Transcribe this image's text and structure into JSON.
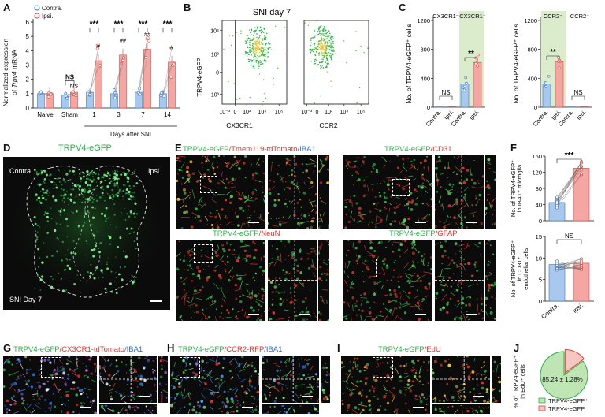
{
  "panels": {
    "A": {
      "label": "A",
      "ylabel_line1": "Normalized expression",
      "ylabel_line2_prefix": "of ",
      "ylabel_line2_gene": "Trpv4",
      "ylabel_line2_suffix": " mRNA",
      "xlabel": "Days after SNI",
      "legend": [
        "Contra.",
        "Ipsi."
      ],
      "yticks": [
        "0",
        "1",
        "2",
        "3",
        "4",
        "5",
        "6"
      ],
      "groups": [
        "Naive",
        "Sham",
        "1",
        "3",
        "7",
        "14"
      ],
      "sig_top": [
        "NS",
        "***",
        "***",
        "***",
        "***"
      ],
      "sig_ipsi": [
        "NS",
        "#",
        "##",
        "##",
        "#"
      ]
    },
    "B": {
      "label": "B",
      "title": "SNI day 7",
      "ylabel": "TRPV4-eGFP",
      "xlabel_left": "CX3CR1",
      "xlabel_right": "CCR2",
      "yticks": [
        "10⁴",
        "10³",
        "0",
        "−10³"
      ],
      "xticks": [
        "10⁻³",
        "0",
        "10³",
        "10⁴",
        "10⁵"
      ]
    },
    "C": {
      "label": "C",
      "left_headers": [
        "CX3CR1⁻",
        "CX3CR1⁺"
      ],
      "right_headers": [
        "CCR2⁻",
        "CCR2⁺"
      ],
      "ylabel_left": "No. of TRPV4-eGFP⁺ cells",
      "ylabel_right": "No. of TRPV4-eGFP⁺ cells",
      "yticks": [
        "0",
        "400",
        "800",
        "1200"
      ],
      "xticks": [
        "Contra.",
        "Ipsi.",
        "Contra.",
        "Ipsi."
      ],
      "sig_left": [
        "NS",
        "**"
      ],
      "sig_right": [
        "**",
        "NS"
      ]
    },
    "D": {
      "label": "D",
      "title": "TRPV4-eGFP",
      "left": "Contra.",
      "right": "Ipsi.",
      "bottom": "SNI Day 7"
    },
    "E": {
      "label": "E",
      "t1": [
        "TRPV4-eGFP",
        "/Tmem119-tdTomato",
        "/IBA1"
      ],
      "t2": [
        "TRPV4-eGFP",
        "/CD31"
      ],
      "t3": [
        "TRPV4-eGFP",
        "/NeuN"
      ],
      "t4": [
        "TRPV4-eGFP",
        "/GFAP"
      ]
    },
    "F": {
      "label": "F",
      "ylabel_top": [
        "No. of TRPV4-eGFP⁺",
        "in IBA1⁺ microglia"
      ],
      "ylabel_bottom": [
        "No. of TRPV4-eGFP⁺",
        "in CD31⁺",
        "endothelial cells"
      ],
      "yticks_top": [
        "0",
        "40",
        "80",
        "120",
        "160"
      ],
      "yticks_bottom": [
        "0",
        "5",
        "10",
        "15"
      ],
      "sig_top": "***",
      "sig_bottom": "NS",
      "xticks": [
        "Contra.",
        "Ipsi."
      ]
    },
    "G": {
      "label": "G",
      "t": [
        "TRPV4-eGFP",
        "/CX3CR1-tdTomato",
        "/IBA1"
      ]
    },
    "H": {
      "label": "H",
      "t": [
        "TRPV4-eGFP",
        "/CCR2-RFP",
        "/IBA1"
      ]
    },
    "I": {
      "label": "I",
      "t": [
        "TRPV4-eGFP",
        "/EdU"
      ]
    },
    "J": {
      "label": "J",
      "ylabel": [
        "% of TRPV4-eGFP⁺",
        "in EdU⁺ cells"
      ],
      "pie_value": "85.24 ± 1.28%",
      "legend": [
        "TRPV4-eGFP⁺",
        "TRPV4-eGFP⁻"
      ]
    }
  },
  "chart_data": [
    {
      "type": "bar",
      "title": "",
      "ylabel": "Normalized expression of Trpv4 mRNA",
      "xlabel": "Days after SNI",
      "categories": [
        "Naive",
        "Sham",
        "1",
        "3",
        "7",
        "14"
      ],
      "ylim": [
        0,
        6
      ],
      "series": [
        {
          "name": "Contra.",
          "values": [
            1.0,
            0.9,
            1.1,
            1.0,
            1.1,
            1.0
          ]
        },
        {
          "name": "Ipsi.",
          "values": [
            1.0,
            1.1,
            3.3,
            3.7,
            4.1,
            3.2
          ]
        }
      ]
    },
    {
      "type": "bar",
      "ylabel": "No. of TRPV4-eGFP⁺ cells",
      "categories": [
        "CX3CR1⁻ Contra.",
        "CX3CR1⁻ Ipsi.",
        "CX3CR1⁺ Contra.",
        "CX3CR1⁺ Ipsi."
      ],
      "values": [
        5,
        8,
        320,
        620
      ],
      "ylim": [
        0,
        1200
      ]
    },
    {
      "type": "bar",
      "ylabel": "No. of TRPV4-eGFP⁺ cells",
      "categories": [
        "CCR2⁻ Contra.",
        "CCR2⁻ Ipsi.",
        "CCR2⁺ Contra.",
        "CCR2⁺ Ipsi."
      ],
      "values": [
        320,
        630,
        5,
        8
      ],
      "ylim": [
        0,
        1200
      ]
    },
    {
      "type": "bar",
      "ylabel": "No. of TRPV4-eGFP⁺ in IBA1⁺ microglia",
      "categories": [
        "Contra.",
        "Ipsi."
      ],
      "values": [
        45,
        130
      ],
      "ylim": [
        0,
        160
      ]
    },
    {
      "type": "bar",
      "ylabel": "No. of TRPV4-eGFP⁺ in CD31⁺ endothelial cells",
      "categories": [
        "Contra.",
        "Ipsi."
      ],
      "values": [
        8.5,
        8.8
      ],
      "ylim": [
        0,
        15
      ]
    },
    {
      "type": "pie",
      "labels": [
        "TRPV4-eGFP⁺",
        "TRPV4-eGFP⁻"
      ],
      "values": [
        85.24,
        14.76
      ]
    }
  ],
  "colors": {
    "contra_fill": "#a9c8ee",
    "contra_edge": "#3a78c8",
    "ipsi_fill": "#f4a6a2",
    "ipsi_edge": "#e0463f",
    "green": "#2bb34a",
    "red": "#e8322a",
    "blue": "#2a6be0",
    "highlight": "#dbeccc"
  }
}
